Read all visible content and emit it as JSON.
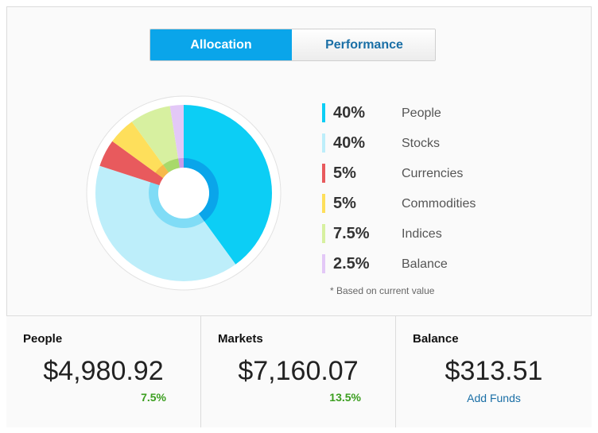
{
  "tabs": {
    "allocation": "Allocation",
    "performance": "Performance"
  },
  "chart_data": {
    "type": "pie",
    "categories": [
      "People",
      "Stocks",
      "Currencies",
      "Commodities",
      "Indices",
      "Balance"
    ],
    "values": [
      40,
      40,
      5,
      5,
      7.5,
      2.5
    ],
    "colors": [
      "#0ccef5",
      "#bdeefa",
      "#e85a5d",
      "#fedf5b",
      "#d7f0a0",
      "#e3c8f7"
    ],
    "inner_colors": [
      "#0aa5ea",
      "#80dcf6",
      "#e85a5d",
      "#f6b94a",
      "#a8d96a",
      "#c89be8"
    ]
  },
  "legend": [
    {
      "pct": "40%",
      "label": "People",
      "color": "#0ccef5"
    },
    {
      "pct": "40%",
      "label": "Stocks",
      "color": "#bdeefa"
    },
    {
      "pct": "5%",
      "label": "Currencies",
      "color": "#e85a5d"
    },
    {
      "pct": "5%",
      "label": "Commodities",
      "color": "#fedf5b"
    },
    {
      "pct": "7.5%",
      "label": "Indices",
      "color": "#d7f0a0"
    },
    {
      "pct": "2.5%",
      "label": "Balance",
      "color": "#e3c8f7"
    }
  ],
  "footnote": "*  Based on current value",
  "cards": {
    "people": {
      "title": "People",
      "value": "$4,980.92",
      "change": "7.5%"
    },
    "markets": {
      "title": "Markets",
      "value": "$7,160.07",
      "change": "13.5%"
    },
    "balance": {
      "title": "Balance",
      "value": "$313.51",
      "link": "Add Funds"
    }
  }
}
